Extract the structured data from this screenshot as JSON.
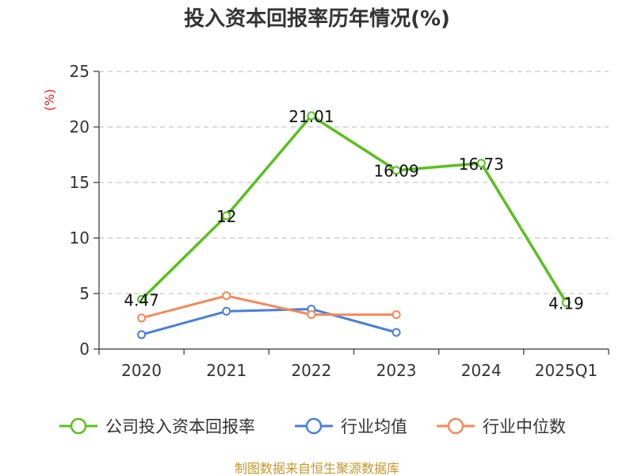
{
  "chart_data": {
    "type": "line",
    "title": "投入资本回报率历年情况(%)",
    "ylabel": "(%)",
    "xlabel": "",
    "categories": [
      "2020",
      "2021",
      "2022",
      "2023",
      "2024",
      "2025Q1"
    ],
    "ylim": [
      0,
      25
    ],
    "yticks": [
      0,
      5,
      10,
      15,
      20,
      25
    ],
    "grid": true,
    "legend_position": "bottom",
    "series": [
      {
        "name": "公司投入资本回报率",
        "values": [
          4.47,
          12,
          21.01,
          16.09,
          16.73,
          4.19
        ],
        "color": "#5bbf21",
        "labels": [
          "4.47",
          "12",
          "21.01",
          "16.09",
          "16.73",
          "4.19"
        ]
      },
      {
        "name": "行业均值",
        "values": [
          1.3,
          3.4,
          3.6,
          1.5,
          null,
          null
        ],
        "color": "#4a7fd6"
      },
      {
        "name": "行业中位数",
        "values": [
          2.8,
          4.8,
          3.1,
          3.1,
          null,
          null
        ],
        "color": "#f28a5a"
      }
    ],
    "source": "制图数据来自恒生聚源数据库"
  }
}
